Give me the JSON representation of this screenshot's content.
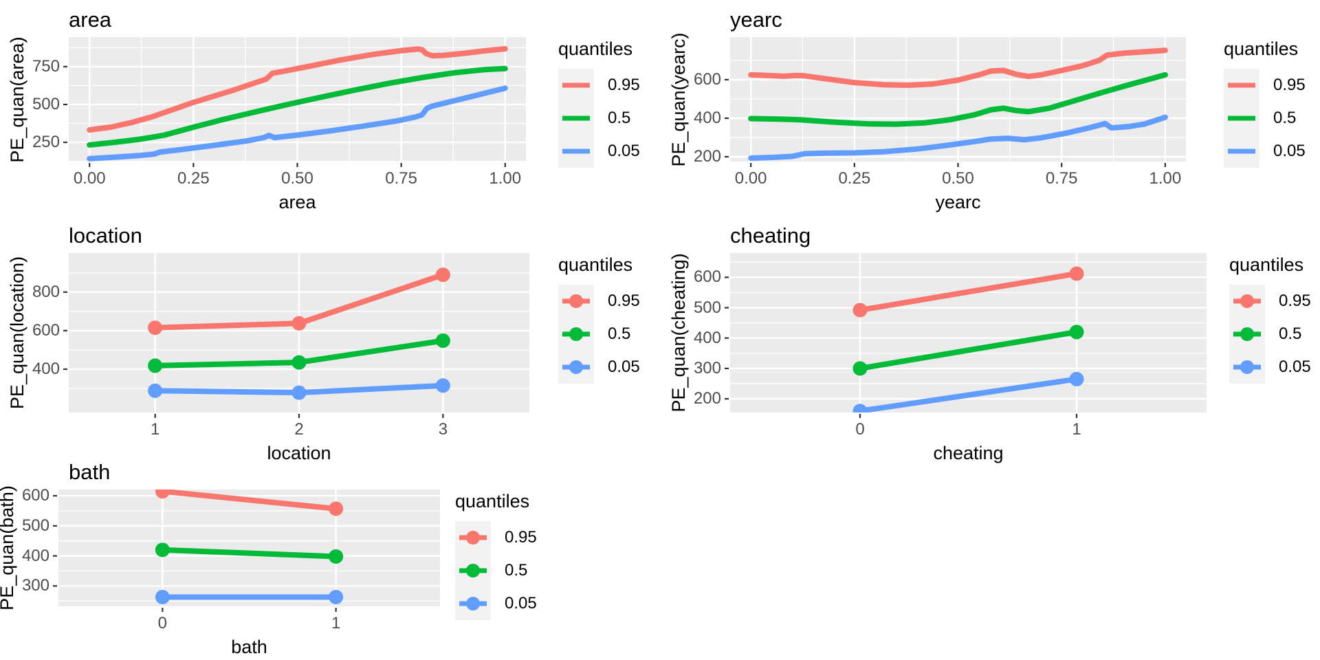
{
  "colors": {
    "red": "#F8766D",
    "green": "#00BA38",
    "blue": "#619CFF",
    "panel": "#EBEBEB",
    "grid": "#FFFFFF",
    "tick_mark": "#333333",
    "tick_text": "#4D4D4D",
    "text": "#000000",
    "legend_key_bg": "#F2F2F2"
  },
  "legend": {
    "title": "quantiles",
    "entries": [
      {
        "label": "0.95",
        "color": "#F8766D"
      },
      {
        "label": "0.5",
        "color": "#00BA38"
      },
      {
        "label": "0.05",
        "color": "#619CFF"
      }
    ]
  },
  "chart_data": [
    {
      "type": "line",
      "title": "area",
      "xlabel": "area",
      "ylabel": "PE_quan(area)",
      "legend_title": "quantiles",
      "legend_position": "right",
      "grid": true,
      "markers": false,
      "xlim": [
        -0.05,
        1.05
      ],
      "ylim": [
        123,
        945
      ],
      "x_ticks": [
        "0.00",
        "0.25",
        "0.50",
        "0.75",
        "1.00"
      ],
      "x_tick_values": [
        0,
        0.25,
        0.5,
        0.75,
        1
      ],
      "x_minor": [
        0.125,
        0.375,
        0.625,
        0.875
      ],
      "y_ticks": [
        {
          "label": "250",
          "value": 250
        },
        {
          "label": "500",
          "value": 500
        },
        {
          "label": "750",
          "value": 750
        }
      ],
      "y_minor": [
        125,
        375,
        625,
        875
      ],
      "series": [
        {
          "name": "0.95",
          "color": "#F8766D",
          "points": [
            [
              0,
              332
            ],
            [
              0.05,
              350
            ],
            [
              0.1,
              380
            ],
            [
              0.15,
              418
            ],
            [
              0.2,
              466
            ],
            [
              0.25,
              514
            ],
            [
              0.3,
              556
            ],
            [
              0.35,
              598
            ],
            [
              0.4,
              645
            ],
            [
              0.425,
              668
            ],
            [
              0.44,
              706
            ],
            [
              0.46,
              716
            ],
            [
              0.52,
              748
            ],
            [
              0.6,
              792
            ],
            [
              0.68,
              830
            ],
            [
              0.75,
              856
            ],
            [
              0.79,
              866
            ],
            [
              0.8,
              862
            ],
            [
              0.81,
              836
            ],
            [
              0.825,
              822
            ],
            [
              0.85,
              824
            ],
            [
              0.9,
              838
            ],
            [
              0.95,
              854
            ],
            [
              1.0,
              868
            ]
          ]
        },
        {
          "name": "0.5",
          "color": "#00BA38",
          "points": [
            [
              0,
              233
            ],
            [
              0.06,
              250
            ],
            [
              0.12,
              270
            ],
            [
              0.16,
              288
            ],
            [
              0.18,
              298
            ],
            [
              0.25,
              350
            ],
            [
              0.32,
              400
            ],
            [
              0.4,
              452
            ],
            [
              0.48,
              502
            ],
            [
              0.56,
              550
            ],
            [
              0.64,
              596
            ],
            [
              0.72,
              640
            ],
            [
              0.8,
              678
            ],
            [
              0.88,
              710
            ],
            [
              0.95,
              730
            ],
            [
              1.0,
              737
            ]
          ]
        },
        {
          "name": "0.05",
          "color": "#619CFF",
          "points": [
            [
              0,
              142
            ],
            [
              0.06,
              152
            ],
            [
              0.12,
              163
            ],
            [
              0.155,
              172
            ],
            [
              0.17,
              186
            ],
            [
              0.22,
              202
            ],
            [
              0.3,
              230
            ],
            [
              0.38,
              260
            ],
            [
              0.42,
              282
            ],
            [
              0.432,
              296
            ],
            [
              0.445,
              281
            ],
            [
              0.5,
              298
            ],
            [
              0.58,
              326
            ],
            [
              0.66,
              358
            ],
            [
              0.74,
              392
            ],
            [
              0.785,
              418
            ],
            [
              0.8,
              432
            ],
            [
              0.812,
              475
            ],
            [
              0.825,
              490
            ],
            [
              0.87,
              520
            ],
            [
              0.93,
              560
            ],
            [
              1.0,
              608
            ]
          ]
        }
      ]
    },
    {
      "type": "line",
      "title": "yearc",
      "xlabel": "yearc",
      "ylabel": "PE_quan(yearc)",
      "legend_title": "quantiles",
      "legend_position": "right",
      "grid": true,
      "markers": false,
      "xlim": [
        -0.05,
        1.05
      ],
      "ylim": [
        175,
        821
      ],
      "x_ticks": [
        "0.00",
        "0.25",
        "0.50",
        "0.75",
        "1.00"
      ],
      "x_tick_values": [
        0,
        0.25,
        0.5,
        0.75,
        1
      ],
      "x_minor": [
        0.125,
        0.375,
        0.625,
        0.875
      ],
      "y_ticks": [
        {
          "label": "200",
          "value": 200
        },
        {
          "label": "400",
          "value": 400
        },
        {
          "label": "600",
          "value": 600
        }
      ],
      "y_minor": [
        300,
        500,
        700
      ],
      "series": [
        {
          "name": "0.95",
          "color": "#F8766D",
          "points": [
            [
              0,
              625
            ],
            [
              0.04,
              622
            ],
            [
              0.08,
              618
            ],
            [
              0.11,
              622
            ],
            [
              0.13,
              620
            ],
            [
              0.18,
              605
            ],
            [
              0.25,
              585
            ],
            [
              0.32,
              574
            ],
            [
              0.38,
              571
            ],
            [
              0.44,
              578
            ],
            [
              0.5,
              598
            ],
            [
              0.55,
              625
            ],
            [
              0.58,
              645
            ],
            [
              0.61,
              648
            ],
            [
              0.64,
              628
            ],
            [
              0.67,
              617
            ],
            [
              0.7,
              625
            ],
            [
              0.75,
              648
            ],
            [
              0.8,
              672
            ],
            [
              0.84,
              700
            ],
            [
              0.86,
              728
            ],
            [
              0.9,
              738
            ],
            [
              0.95,
              745
            ],
            [
              1.0,
              752
            ]
          ]
        },
        {
          "name": "0.5",
          "color": "#00BA38",
          "points": [
            [
              0,
              398
            ],
            [
              0.06,
              396
            ],
            [
              0.12,
              392
            ],
            [
              0.2,
              380
            ],
            [
              0.28,
              371
            ],
            [
              0.35,
              369
            ],
            [
              0.42,
              376
            ],
            [
              0.48,
              392
            ],
            [
              0.54,
              418
            ],
            [
              0.58,
              444
            ],
            [
              0.61,
              452
            ],
            [
              0.64,
              440
            ],
            [
              0.67,
              434
            ],
            [
              0.72,
              452
            ],
            [
              0.78,
              490
            ],
            [
              0.85,
              535
            ],
            [
              0.92,
              578
            ],
            [
              1.0,
              625
            ]
          ]
        },
        {
          "name": "0.05",
          "color": "#619CFF",
          "points": [
            [
              0,
              193
            ],
            [
              0.06,
              197
            ],
            [
              0.1,
              202
            ],
            [
              0.13,
              216
            ],
            [
              0.18,
              219
            ],
            [
              0.25,
              220
            ],
            [
              0.32,
              226
            ],
            [
              0.4,
              240
            ],
            [
              0.47,
              258
            ],
            [
              0.53,
              276
            ],
            [
              0.58,
              292
            ],
            [
              0.62,
              296
            ],
            [
              0.66,
              288
            ],
            [
              0.7,
              298
            ],
            [
              0.76,
              322
            ],
            [
              0.82,
              352
            ],
            [
              0.855,
              372
            ],
            [
              0.87,
              350
            ],
            [
              0.91,
              356
            ],
            [
              0.95,
              370
            ],
            [
              1.0,
              405
            ]
          ]
        }
      ]
    },
    {
      "type": "line",
      "title": "location",
      "xlabel": "location",
      "ylabel": "PE_quan(location)",
      "legend_title": "quantiles",
      "legend_position": "right",
      "grid": true,
      "markers": true,
      "categories": [
        "1",
        "2",
        "3"
      ],
      "ylim": [
        175,
        1003
      ],
      "y_ticks": [
        {
          "label": "400",
          "value": 400
        },
        {
          "label": "600",
          "value": 600
        },
        {
          "label": "800",
          "value": 800
        }
      ],
      "y_minor": [
        300,
        500,
        700,
        900
      ],
      "series": [
        {
          "name": "0.95",
          "color": "#F8766D",
          "values": [
            615,
            638,
            890
          ]
        },
        {
          "name": "0.5",
          "color": "#00BA38",
          "values": [
            418,
            435,
            548
          ]
        },
        {
          "name": "0.05",
          "color": "#619CFF",
          "values": [
            288,
            278,
            315
          ]
        }
      ]
    },
    {
      "type": "line",
      "title": "cheating",
      "xlabel": "cheating",
      "ylabel": "PE_quan(cheating)",
      "legend_title": "quantiles",
      "legend_position": "right",
      "grid": true,
      "markers": true,
      "categories": [
        "0",
        "1"
      ],
      "ylim": [
        155,
        680
      ],
      "y_ticks": [
        {
          "label": "200",
          "value": 200
        },
        {
          "label": "300",
          "value": 300
        },
        {
          "label": "400",
          "value": 400
        },
        {
          "label": "500",
          "value": 500
        },
        {
          "label": "600",
          "value": 600
        }
      ],
      "y_minor": [
        250,
        350,
        450,
        550,
        650
      ],
      "series": [
        {
          "name": "0.95",
          "color": "#F8766D",
          "values": [
            492,
            612
          ]
        },
        {
          "name": "0.5",
          "color": "#00BA38",
          "values": [
            300,
            420
          ]
        },
        {
          "name": "0.05",
          "color": "#619CFF",
          "values": [
            160,
            265
          ]
        }
      ]
    },
    {
      "type": "line",
      "title": "bath",
      "xlabel": "bath",
      "ylabel": "PE_quan(bath)",
      "legend_title": "quantiles",
      "legend_position": "right",
      "grid": true,
      "markers": true,
      "categories": [
        "0",
        "1"
      ],
      "ylim": [
        232,
        621
      ],
      "y_ticks": [
        {
          "label": "300",
          "value": 300
        },
        {
          "label": "400",
          "value": 400
        },
        {
          "label": "500",
          "value": 500
        },
        {
          "label": "600",
          "value": 600
        }
      ],
      "y_minor": [
        250,
        350,
        450,
        550
      ],
      "series": [
        {
          "name": "0.95",
          "color": "#F8766D",
          "values": [
            615,
            557
          ]
        },
        {
          "name": "0.5",
          "color": "#00BA38",
          "values": [
            420,
            398
          ]
        },
        {
          "name": "0.05",
          "color": "#619CFF",
          "values": [
            263,
            263
          ]
        }
      ]
    }
  ]
}
